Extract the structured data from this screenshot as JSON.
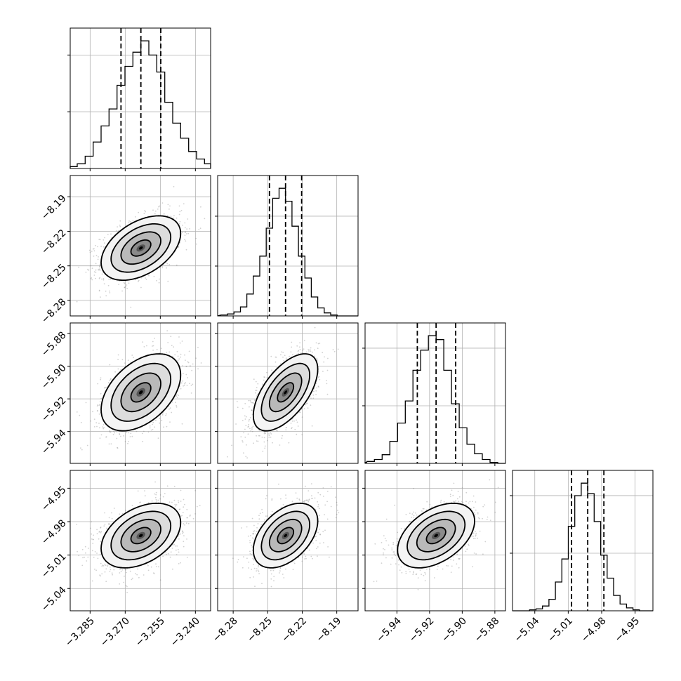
{
  "chart_data": {
    "type": "corner",
    "parameters": [
      {
        "median": -3.2633,
        "q16": -3.2718,
        "q84": -3.2548,
        "sigma": 0.0085,
        "range": [
          -3.2935,
          -3.2335
        ],
        "ticks": [
          -3.285,
          -3.27,
          -3.255,
          -3.24
        ],
        "tick_labels": [
          "−3.285",
          "−3.270",
          "−3.255",
          "−3.240"
        ]
      },
      {
        "median": -8.2345,
        "q16": -8.2485,
        "q84": -8.2205,
        "sigma": 0.014,
        "range": [
          -8.2935,
          -8.1715
        ],
        "ticks": [
          -8.28,
          -8.25,
          -8.22,
          -8.19
        ],
        "tick_labels": [
          "−8.28",
          "−8.25",
          "−8.22",
          "−8.19"
        ]
      },
      {
        "median": -5.916,
        "q16": -5.9275,
        "q84": -5.904,
        "sigma": 0.0118,
        "range": [
          -5.9595,
          -5.8735
        ],
        "ticks": [
          -5.94,
          -5.92,
          -5.9,
          -5.88
        ],
        "tick_labels": [
          "−5.94",
          "−5.92",
          "−5.90",
          "−5.88"
        ]
      },
      {
        "median": -4.9925,
        "q16": -5.007,
        "q84": -4.978,
        "sigma": 0.0145,
        "range": [
          -5.06,
          -4.934
        ],
        "ticks": [
          -5.04,
          -5.01,
          -4.98,
          -4.95
        ],
        "tick_labels": [
          "−5.04",
          "−5.01",
          "−4.98",
          "−4.95"
        ]
      }
    ],
    "histograms": [
      {
        "counts": [
          1,
          2,
          5,
          13,
          28,
          45,
          63,
          88,
          108,
          123,
          135,
          120,
          102,
          70,
          48,
          32,
          18,
          10,
          5,
          2
        ]
      },
      {
        "counts": [
          1,
          2,
          4,
          9,
          22,
          40,
          60,
          88,
          118,
          128,
          115,
          90,
          60,
          38,
          19,
          8,
          3,
          1,
          0,
          0
        ]
      },
      {
        "counts": [
          1,
          2,
          4,
          9,
          23,
          42,
          65,
          97,
          118,
          133,
          129,
          97,
          62,
          37,
          20,
          10,
          4,
          1,
          0,
          0
        ]
      },
      {
        "counts": [
          0,
          1,
          2,
          5,
          12,
          30,
          54,
          88,
          120,
          133,
          122,
          93,
          58,
          34,
          16,
          7,
          3,
          1,
          0,
          0
        ]
      }
    ],
    "correlations": [
      {
        "pair": [
          0,
          1
        ],
        "rho": 0.45
      },
      {
        "pair": [
          0,
          2
        ],
        "rho": 0.45
      },
      {
        "pair": [
          1,
          2
        ],
        "rho": 0.6
      },
      {
        "pair": [
          0,
          3
        ],
        "rho": 0.4
      },
      {
        "pair": [
          1,
          3
        ],
        "rho": 0.45
      },
      {
        "pair": [
          2,
          3
        ],
        "rho": 0.45
      }
    ],
    "contour_levels_sigma": [
      0.5,
      1.0,
      1.5,
      2.0
    ],
    "quantiles": [
      0.16,
      0.5,
      0.84
    ],
    "grid": true,
    "line_color": "#000000",
    "point_color": "#7a7a7a"
  }
}
